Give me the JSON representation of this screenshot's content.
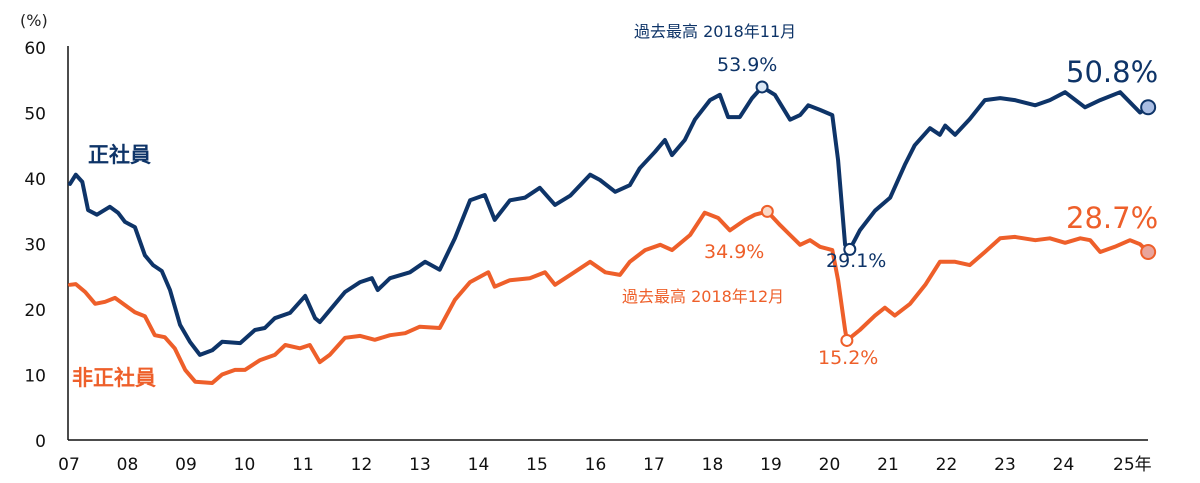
{
  "chart_data": {
    "type": "line",
    "title": "",
    "ylabel": "(%)",
    "xlabel": "",
    "ylim": [
      0,
      60
    ],
    "xlim": [
      2007,
      2025.5
    ],
    "grid": false,
    "yticks": [
      "0",
      "10",
      "20",
      "30",
      "40",
      "50",
      "60"
    ],
    "xticks": [
      {
        "year": 2007,
        "label": "07"
      },
      {
        "year": 2008,
        "label": "08"
      },
      {
        "year": 2009,
        "label": "09"
      },
      {
        "year": 2010,
        "label": "10"
      },
      {
        "year": 2011,
        "label": "11"
      },
      {
        "year": 2012,
        "label": "12"
      },
      {
        "year": 2013,
        "label": "13"
      },
      {
        "year": 2014,
        "label": "14"
      },
      {
        "year": 2015,
        "label": "15"
      },
      {
        "year": 2016,
        "label": "16"
      },
      {
        "year": 2017,
        "label": "17"
      },
      {
        "year": 2018,
        "label": "18"
      },
      {
        "year": 2019,
        "label": "19"
      },
      {
        "year": 2020,
        "label": "20"
      },
      {
        "year": 2021,
        "label": "21"
      },
      {
        "year": 2022,
        "label": "22"
      },
      {
        "year": 2023,
        "label": "23"
      },
      {
        "year": 2024,
        "label": "24"
      },
      {
        "year": 2025,
        "label": "25年"
      }
    ],
    "series": [
      {
        "name": "正社員",
        "color": "#0e3468",
        "x": [
          2007.0,
          2007.1,
          2007.21,
          2007.31,
          2007.46,
          2007.68,
          2007.82,
          2007.94,
          2008.11,
          2008.28,
          2008.42,
          2008.57,
          2008.71,
          2008.88,
          2009.05,
          2009.22,
          2009.43,
          2009.6,
          2009.91,
          2010.16,
          2010.33,
          2010.5,
          2010.76,
          2011.02,
          2011.19,
          2011.27,
          2011.44,
          2011.7,
          2011.96,
          2012.16,
          2012.26,
          2012.47,
          2012.81,
          2013.07,
          2013.32,
          2013.58,
          2013.84,
          2014.09,
          2014.26,
          2014.52,
          2014.78,
          2015.03,
          2015.29,
          2015.55,
          2015.89,
          2016.06,
          2016.32,
          2016.57,
          2016.74,
          2017.0,
          2017.17,
          2017.29,
          2017.51,
          2017.68,
          2017.94,
          2018.11,
          2018.25,
          2018.45,
          2018.66,
          2018.83,
          2019.05,
          2019.31,
          2019.48,
          2019.62,
          2019.82,
          2020.03,
          2020.13,
          2020.25,
          2020.33,
          2020.5,
          2020.76,
          2021.02,
          2021.27,
          2021.44,
          2021.7,
          2021.87,
          2021.96,
          2022.13,
          2022.38,
          2022.64,
          2022.9,
          2023.15,
          2023.5,
          2023.75,
          2024.01,
          2024.35,
          2024.61,
          2024.95,
          2025.29,
          2025.43
        ],
        "values": [
          39.1,
          40.5,
          39.4,
          35.1,
          34.4,
          35.6,
          34.7,
          33.3,
          32.5,
          28.2,
          26.7,
          25.8,
          22.9,
          17.6,
          15.0,
          13.0,
          13.7,
          15.0,
          14.8,
          16.8,
          17.1,
          18.6,
          19.4,
          22.0,
          18.6,
          18.0,
          19.8,
          22.6,
          24.1,
          24.7,
          22.9,
          24.7,
          25.6,
          27.2,
          26.0,
          30.8,
          36.6,
          37.4,
          33.6,
          36.6,
          37.0,
          38.5,
          35.9,
          37.3,
          40.5,
          39.7,
          37.9,
          38.9,
          41.5,
          44.0,
          45.8,
          43.5,
          45.8,
          48.9,
          51.9,
          52.7,
          49.3,
          49.3,
          52.2,
          53.9,
          52.7,
          48.9,
          49.6,
          51.1,
          50.4,
          49.6,
          42.7,
          29.8,
          29.1,
          32.0,
          35.0,
          37.0,
          42.0,
          45.0,
          47.6,
          46.6,
          48.0,
          46.6,
          49.0,
          51.9,
          52.2,
          51.9,
          51.1,
          51.9,
          53.1,
          50.8,
          51.9,
          53.1,
          50.0,
          50.8
        ]
      },
      {
        "name": "非正社員",
        "color": "#ee5f2a",
        "x": [
          2007.0,
          2007.1,
          2007.26,
          2007.43,
          2007.6,
          2007.77,
          2007.94,
          2008.11,
          2008.28,
          2008.45,
          2008.62,
          2008.79,
          2008.97,
          2009.14,
          2009.43,
          2009.6,
          2009.82,
          2009.99,
          2010.25,
          2010.5,
          2010.68,
          2010.93,
          2011.1,
          2011.27,
          2011.44,
          2011.7,
          2011.96,
          2012.21,
          2012.47,
          2012.73,
          2012.98,
          2013.32,
          2013.58,
          2013.84,
          2014.15,
          2014.26,
          2014.52,
          2014.86,
          2015.12,
          2015.29,
          2015.55,
          2015.89,
          2016.15,
          2016.4,
          2016.57,
          2016.83,
          2017.09,
          2017.29,
          2017.6,
          2017.85,
          2018.08,
          2018.28,
          2018.54,
          2018.71,
          2018.92,
          2019.14,
          2019.31,
          2019.48,
          2019.65,
          2019.82,
          2020.03,
          2020.13,
          2020.25,
          2020.28,
          2020.5,
          2020.76,
          2020.93,
          2021.1,
          2021.36,
          2021.62,
          2021.87,
          2022.13,
          2022.38,
          2022.64,
          2022.9,
          2023.15,
          2023.5,
          2023.75,
          2024.01,
          2024.27,
          2024.44,
          2024.61,
          2024.86,
          2025.12,
          2025.29,
          2025.43
        ],
        "values": [
          23.7,
          23.8,
          22.6,
          20.8,
          21.1,
          21.7,
          20.6,
          19.5,
          18.9,
          16.0,
          15.7,
          14.0,
          10.7,
          8.9,
          8.7,
          10.0,
          10.7,
          10.7,
          12.2,
          13.0,
          14.5,
          14.0,
          14.5,
          11.9,
          13.0,
          15.6,
          15.9,
          15.3,
          16.0,
          16.3,
          17.3,
          17.1,
          21.4,
          24.1,
          25.6,
          23.4,
          24.4,
          24.7,
          25.6,
          23.7,
          25.2,
          27.2,
          25.6,
          25.2,
          27.2,
          29.0,
          29.8,
          29.0,
          31.3,
          34.7,
          33.9,
          32.0,
          33.6,
          34.4,
          34.9,
          32.8,
          31.3,
          29.8,
          30.5,
          29.5,
          29.0,
          24.4,
          16.8,
          15.2,
          16.8,
          19.0,
          20.2,
          19.0,
          20.8,
          23.7,
          27.2,
          27.2,
          26.7,
          28.7,
          30.8,
          31.0,
          30.5,
          30.8,
          30.1,
          30.8,
          30.5,
          28.7,
          29.5,
          30.5,
          29.9,
          28.7
        ]
      }
    ],
    "annotations": {
      "regular_label": "正社員",
      "nonregular_label": "非正社員",
      "regular_peak_caption": "過去最高 2018年11月",
      "regular_peak_value": "53.9%",
      "regular_trough_value": "29.1%",
      "regular_latest_value": "50.8%",
      "nonregular_peak_caption": "過去最高 2018年12月",
      "nonregular_peak_value": "34.9%",
      "nonregular_trough_value": "15.2%",
      "nonregular_latest_value": "28.7%"
    },
    "markers": [
      {
        "series": 0,
        "year": 2018.83,
        "value": 53.9,
        "fill": "#dbe8f6"
      },
      {
        "series": 0,
        "year": 2020.33,
        "value": 29.1,
        "fill": "#ffffff"
      },
      {
        "series": 0,
        "year": 2025.43,
        "value": 50.8,
        "fill": "#a9bde3"
      },
      {
        "series": 1,
        "year": 2018.92,
        "value": 34.9,
        "fill": "#fbd9c8"
      },
      {
        "series": 1,
        "year": 2020.28,
        "value": 15.2,
        "fill": "#ffffff"
      },
      {
        "series": 1,
        "year": 2025.43,
        "value": 28.7,
        "fill": "#e9a59c"
      }
    ]
  }
}
